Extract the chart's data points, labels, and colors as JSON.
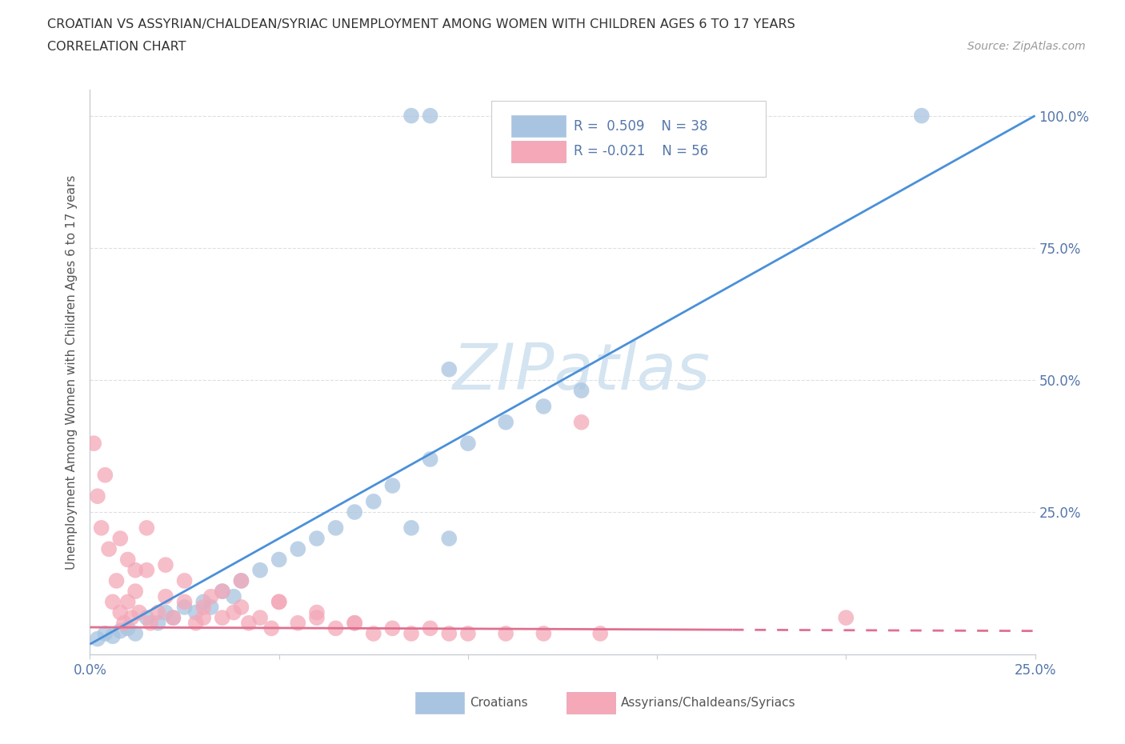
{
  "title": "CROATIAN VS ASSYRIAN/CHALDEAN/SYRIAC UNEMPLOYMENT AMONG WOMEN WITH CHILDREN AGES 6 TO 17 YEARS",
  "subtitle": "CORRELATION CHART",
  "source": "Source: ZipAtlas.com",
  "ylabel": "Unemployment Among Women with Children Ages 6 to 17 years",
  "xlim": [
    0.0,
    0.25
  ],
  "ylim": [
    -0.02,
    1.05
  ],
  "plot_ylim": [
    0.0,
    1.0
  ],
  "xtick_positions": [
    0.0,
    0.05,
    0.1,
    0.15,
    0.2,
    0.25
  ],
  "xticklabels": [
    "0.0%",
    "",
    "",
    "",
    "",
    "25.0%"
  ],
  "ytick_positions": [
    0.0,
    0.25,
    0.5,
    0.75,
    1.0
  ],
  "yticklabels": [
    "",
    "25.0%",
    "50.0%",
    "75.0%",
    "100.0%"
  ],
  "croatian_R": 0.509,
  "croatian_N": 38,
  "assyrian_R": -0.021,
  "assyrian_N": 56,
  "croatian_color": "#a8c4e0",
  "assyrian_color": "#f4a8b8",
  "croatian_line_color": "#4a90d9",
  "assyrian_line_color": "#e07090",
  "background_color": "#ffffff",
  "watermark": "ZIPatlas",
  "watermark_color": "#d4e4f0",
  "grid_color": "#d8dde2",
  "spine_color": "#c8cdd2",
  "tick_color": "#8090a0",
  "label_color": "#5577aa",
  "title_color": "#333333",
  "ylabel_color": "#555555",
  "legend_label1": "Croatians",
  "legend_label2": "Assyrians/Chaldeans/Syriacs"
}
